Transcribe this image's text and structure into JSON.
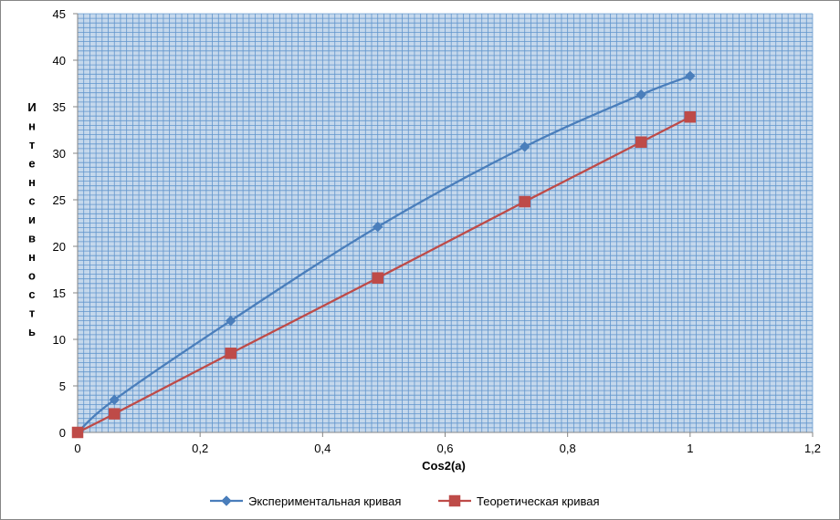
{
  "chart_data": {
    "type": "line",
    "title": "",
    "xlabel": "Cos2(a)",
    "ylabel": "Интенсивность",
    "xlim": [
      0,
      1.2
    ],
    "ylim": [
      0,
      45
    ],
    "x_ticks": [
      "0",
      "0,2",
      "0,4",
      "0,6",
      "0,8",
      "1",
      "1,2"
    ],
    "y_ticks": [
      "0",
      "5",
      "10",
      "15",
      "20",
      "25",
      "30",
      "35",
      "40",
      "45"
    ],
    "grid": true,
    "legend_position": "bottom",
    "series": [
      {
        "name": "Экспериментальная кривая",
        "color": "#4a7ebb",
        "marker": "diamond",
        "points": [
          [
            0,
            0
          ],
          [
            0.06,
            3.5
          ],
          [
            0.25,
            12
          ],
          [
            0.49,
            22.1
          ],
          [
            0.73,
            30.7
          ],
          [
            0.92,
            36.3
          ],
          [
            1.0,
            38.3
          ]
        ]
      },
      {
        "name": "Теоретическая кривая",
        "color": "#be4b48",
        "marker": "square",
        "points": [
          [
            0,
            0
          ],
          [
            0.06,
            2
          ],
          [
            0.25,
            8.5
          ],
          [
            0.49,
            16.6
          ],
          [
            0.73,
            24.8
          ],
          [
            0.92,
            31.2
          ],
          [
            1.0,
            33.9
          ]
        ]
      }
    ]
  }
}
